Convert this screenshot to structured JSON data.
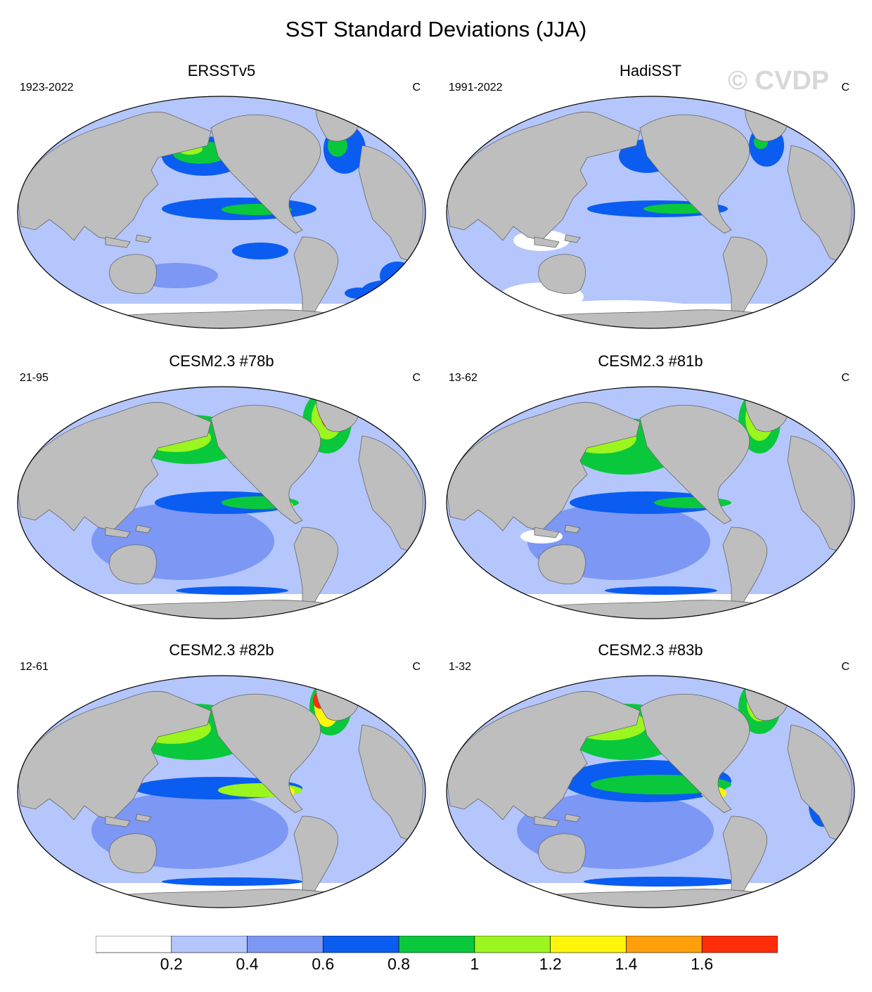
{
  "title": "SST Standard Deviations (JJA)",
  "watermark": "© CVDP",
  "panels": [
    {
      "title": "ERSSTv5",
      "period": "1923-2022",
      "units": "C"
    },
    {
      "title": "HadiSST",
      "period": "1991-2022",
      "units": "C"
    },
    {
      "title": "CESM2.3 #78b",
      "period": "21-95",
      "units": "C"
    },
    {
      "title": "CESM2.3 #81b",
      "period": "13-62",
      "units": "C"
    },
    {
      "title": "CESM2.3 #82b",
      "period": "12-61",
      "units": "C"
    },
    {
      "title": "CESM2.3 #83b",
      "period": "1-32",
      "units": "C"
    }
  ],
  "colorbar": {
    "labels": [
      "0.2",
      "0.4",
      "0.6",
      "0.8",
      "1",
      "1.2",
      "1.4",
      "1.6"
    ],
    "colors": [
      "#ffffff",
      "#b4c6fb",
      "#7d97f5",
      "#0a5df0",
      "#0ac83c",
      "#9bf51e",
      "#fff50a",
      "#ffa00a",
      "#ff2d0a"
    ]
  },
  "land_color": "#bebebe"
}
